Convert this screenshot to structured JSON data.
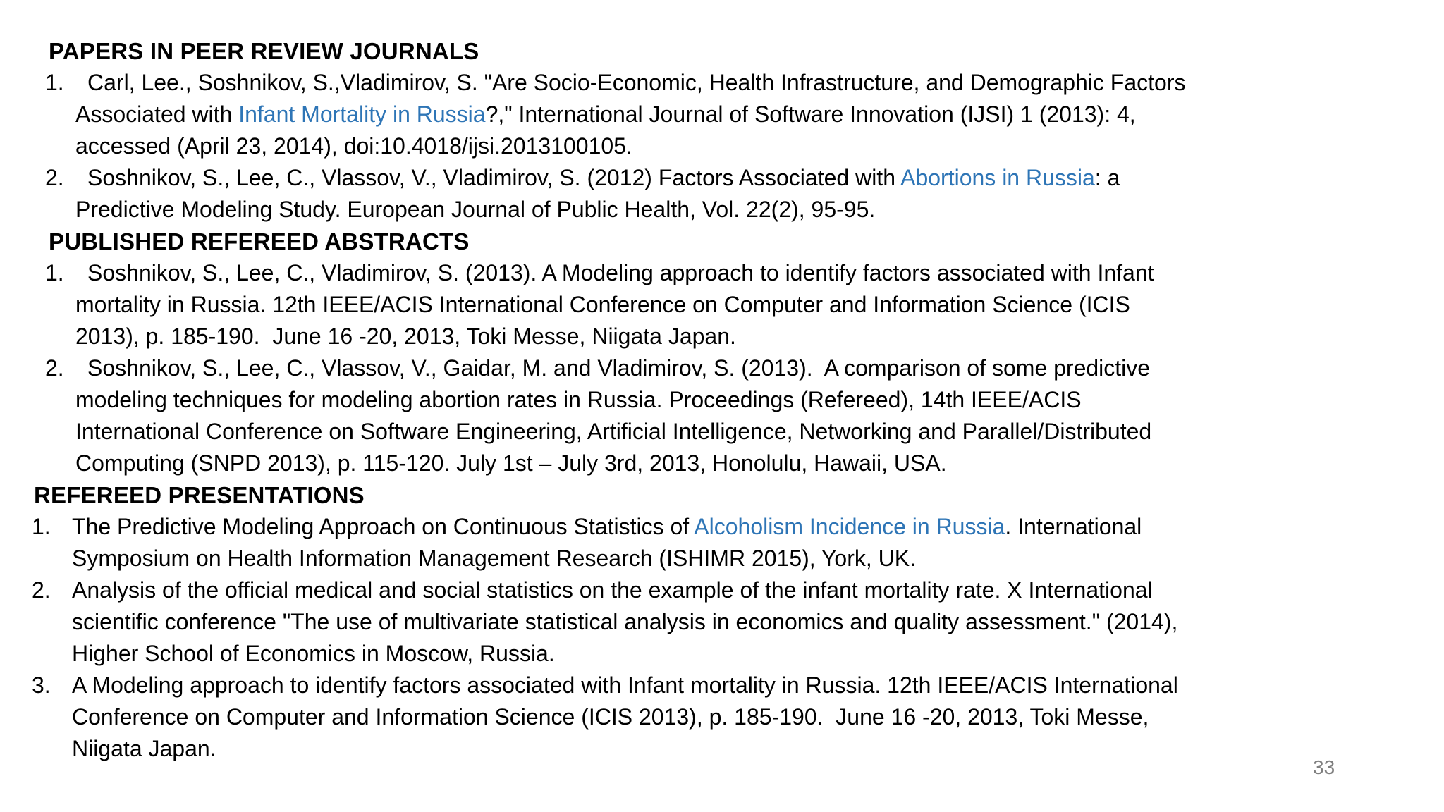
{
  "slide": {
    "background": "#ffffff",
    "text_color": "#000000",
    "link_color": "#2e75b6",
    "page_number_color": "#7f7f7f",
    "page_number": "33",
    "sections": [
      {
        "id": "papers-in-peer-review-journals",
        "heading": "PAPERS IN PEER REVIEW JOURNALS",
        "indent": "wide",
        "items": [
          {
            "number": "1.",
            "lines": [
              [
                {
                  "t": "Carl, Lee., Soshnikov, S.,Vladimirov, S. \"Are Socio-Economic, Health Infrastructure, and Demographic Factors"
                }
              ],
              [
                {
                  "t": "Associated with "
                },
                {
                  "t": "Infant Mortality in Russia",
                  "link": true
                },
                {
                  "t": "?,\" International Journal of Software Innovation (IJSI) 1 (2013): 4,"
                }
              ],
              [
                {
                  "t": "accessed (April 23, 2014), doi:10.4018/ijsi.2013100105."
                }
              ]
            ]
          },
          {
            "number": "2.",
            "lines": [
              [
                {
                  "t": "Soshnikov, S., Lee, C., Vlassov, V., Vladimirov, S. (2012) Factors Associated with "
                },
                {
                  "t": "Abortions in Russia",
                  "link": true
                },
                {
                  "t": ": a"
                }
              ],
              [
                {
                  "t": "Predictive Modeling Study. European Journal of Public Health, Vol. 22(2), 95-95."
                }
              ]
            ]
          }
        ]
      },
      {
        "id": "published-refereed-abstracts",
        "heading": "PUBLISHED REFEREED ABSTRACTS",
        "indent": "wide",
        "items": [
          {
            "number": "1.",
            "lines": [
              [
                {
                  "t": "Soshnikov, S., Lee, C., Vladimirov, S. (2013). A Modeling approach to identify factors associated with Infant"
                }
              ],
              [
                {
                  "t": "mortality in Russia. 12th IEEE/ACIS International Conference on Computer and Information Science (ICIS"
                }
              ],
              [
                {
                  "t": "2013), p. 185-190.  June 16 -20, 2013, Toki Messe, Niigata Japan."
                }
              ]
            ]
          },
          {
            "number": "2.",
            "lines": [
              [
                {
                  "t": "Soshnikov, S., Lee, C., Vlassov, V., Gaidar, M. and Vladimirov, S. (2013).  A comparison of some predictive"
                }
              ],
              [
                {
                  "t": "modeling techniques for modeling abortion rates in Russia. Proceedings (Refereed), 14th IEEE/ACIS"
                }
              ],
              [
                {
                  "t": "International Conference on Software Engineering, Artificial Intelligence, Networking and Parallel/Distributed"
                }
              ],
              [
                {
                  "t": "Computing (SNPD 2013), p. 115-120. July 1st – July 3rd, 2013, Honolulu, Hawaii, USA."
                }
              ]
            ]
          }
        ]
      },
      {
        "id": "refereed-presentations",
        "heading": "REFEREED PRESENTATIONS",
        "indent": "narrow",
        "items": [
          {
            "number": "1.",
            "lines": [
              [
                {
                  "t": "The Predictive Modeling Approach on Continuous Statistics of "
                },
                {
                  "t": "Alcoholism Incidence in Russia",
                  "link": true
                },
                {
                  "t": ". International"
                }
              ],
              [
                {
                  "t": "Symposium on Health Information Management Research (ISHIMR 2015), York, UK."
                }
              ]
            ]
          },
          {
            "number": "2.",
            "lines": [
              [
                {
                  "t": "Analysis of the official medical and social statistics on the example of the infant mortality rate. X International"
                }
              ],
              [
                {
                  "t": "scientific conference \"The use of multivariate statistical analysis in economics and quality assessment.\" (2014),"
                }
              ],
              [
                {
                  "t": "Higher School of Economics in Moscow, Russia."
                }
              ]
            ]
          },
          {
            "number": "3.",
            "lines": [
              [
                {
                  "t": "A Modeling approach to identify factors associated with Infant mortality in Russia. 12th IEEE/ACIS International"
                }
              ],
              [
                {
                  "t": "Conference on Computer and Information Science (ICIS 2013), p. 185-190.  June 16 -20, 2013, Toki Messe,"
                }
              ],
              [
                {
                  "t": "Niigata Japan."
                }
              ]
            ]
          }
        ]
      }
    ]
  }
}
